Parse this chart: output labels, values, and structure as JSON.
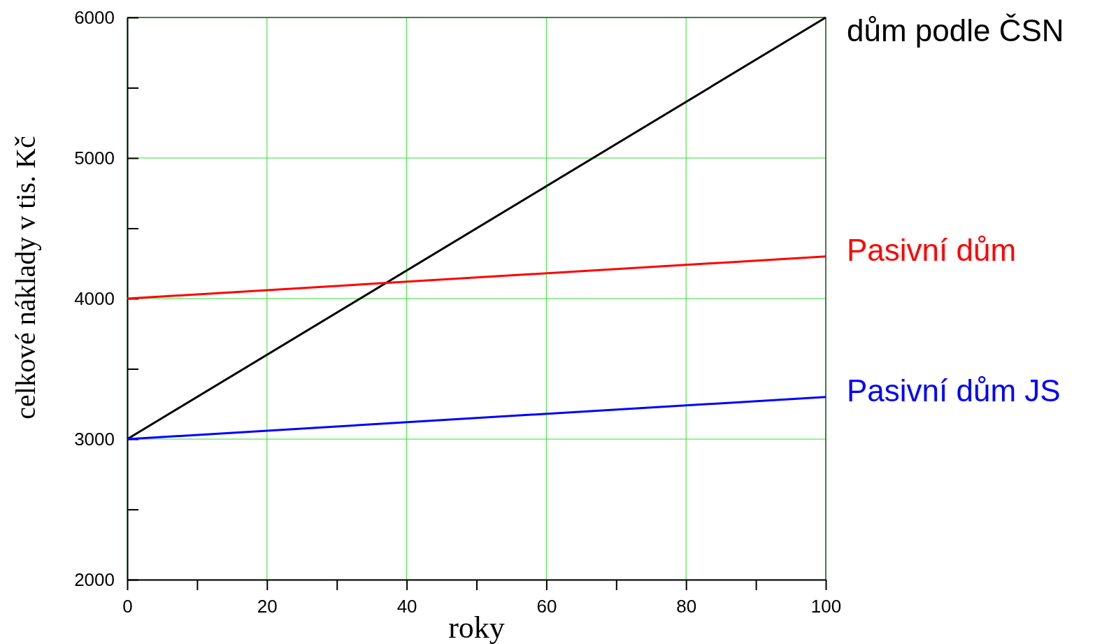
{
  "chart_data": {
    "type": "line",
    "xlabel": "roky",
    "ylabel": "celkové náklady v tis. Kč",
    "x": [
      0,
      100
    ],
    "xlim": [
      0,
      100
    ],
    "ylim": [
      2000,
      6000
    ],
    "xticks": [
      0,
      {
        "value": 10,
        "label": null
      },
      20,
      {
        "value": 30,
        "label": null
      },
      40,
      {
        "value": 50,
        "label": null
      },
      60,
      {
        "value": 70,
        "label": null
      },
      80,
      {
        "value": 90,
        "label": null
      },
      100
    ],
    "yticks": [
      2000,
      {
        "value": 2500,
        "label": null
      },
      3000,
      {
        "value": 3500,
        "label": null
      },
      4000,
      {
        "value": 4500,
        "label": null
      },
      5000,
      {
        "value": 5500,
        "label": null
      },
      6000
    ],
    "grid": true,
    "marker": "none",
    "line_style": "solid",
    "series": [
      {
        "name": "dům podle ČSN",
        "color": "#000000",
        "values": [
          3000,
          6000
        ]
      },
      {
        "name": "Pasivní dům",
        "color": "#ff0000",
        "values": [
          4000,
          4300
        ]
      },
      {
        "name": "Pasivní dům JS",
        "color": "#0000ff",
        "values": [
          3000,
          3300
        ]
      }
    ]
  }
}
